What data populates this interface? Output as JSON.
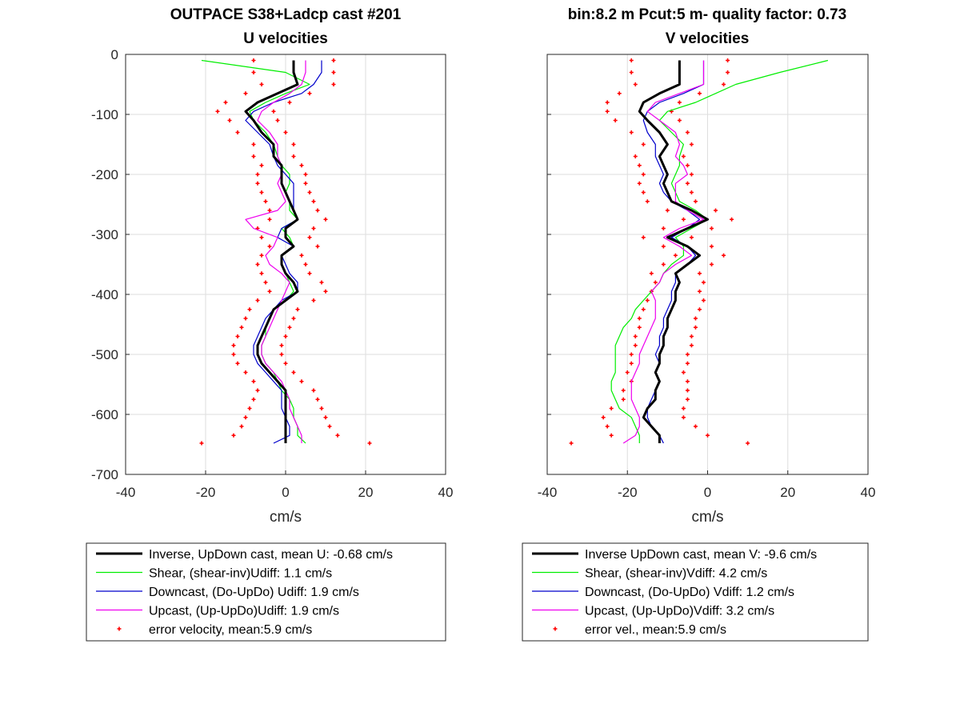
{
  "figure": {
    "left_title_1": "OUTPACE S38+Ladcp cast #201",
    "left_title_2": "U velocities",
    "right_title_1": "bin:8.2 m  Pcut:5 m- quality factor:  0.73",
    "right_title_2": "V velocities"
  },
  "colors": {
    "inverse": "#000000",
    "shear": "#00ee00",
    "downcast": "#0000cc",
    "upcast": "#ee00ee",
    "error": "#ff0000",
    "grid": "#dedede"
  },
  "chart_data": [
    {
      "type": "line",
      "title": "OUTPACE S38+Ladcp cast #201",
      "subtitle": "U velocities",
      "xlabel": "cm/s",
      "ylabel": "",
      "xlim": [
        -40,
        40
      ],
      "ylim": [
        -700,
        0
      ],
      "xticks": [
        "-40",
        "-20",
        "0",
        "20",
        "40"
      ],
      "yticks": [
        "0",
        "-100",
        "-200",
        "-300",
        "-400",
        "-500",
        "-600",
        "-700"
      ],
      "grid": true,
      "legend_position": "below",
      "depth": [
        -10,
        -30,
        -50,
        -65,
        -80,
        -95,
        -110,
        -130,
        -150,
        -170,
        -185,
        -200,
        -215,
        -230,
        -245,
        -260,
        -275,
        -290,
        -305,
        -320,
        -335,
        -350,
        -365,
        -380,
        -395,
        -410,
        -425,
        -440,
        -455,
        -470,
        -485,
        -500,
        -515,
        -530,
        -545,
        -560,
        -575,
        -590,
        -605,
        -620,
        -635,
        -648
      ],
      "series": [
        {
          "name": "Inverse, UpDown cast, mean U:  -0.68 cm/s",
          "color_key": "inverse",
          "values": [
            2,
            2,
            3,
            -2,
            -7,
            -10,
            -8,
            -6,
            -3,
            -3,
            -1,
            -1,
            -1,
            0,
            1,
            2,
            3,
            0,
            0,
            2,
            -1,
            -1,
            0,
            2,
            3,
            0,
            -3,
            -4,
            -5,
            -6,
            -7,
            -7,
            -6,
            -4,
            -2,
            0,
            0,
            0,
            0,
            0,
            0,
            0
          ]
        },
        {
          "name": "Shear, (shear-inv)Udiff:  1.1 cm/s",
          "color_key": "shear",
          "values": [
            -21,
            0,
            6,
            0,
            -5,
            -9,
            -8,
            -5,
            -3,
            -2,
            -1,
            1,
            1,
            0,
            1,
            1,
            3,
            -1,
            1,
            2,
            -1,
            -1,
            0,
            1,
            2,
            0,
            -3,
            -4,
            -5,
            -5,
            -6,
            -6,
            -5,
            -3,
            -2,
            -1,
            1,
            2,
            2,
            3,
            3,
            5
          ]
        },
        {
          "name": "Downcast, (Do-UpDo) Udiff:  1.9 cm/s",
          "color_key": "downcast",
          "values": [
            9,
            9,
            7,
            4,
            -3,
            -8,
            -10,
            -7,
            -4,
            -3,
            -2,
            0,
            2,
            2,
            2,
            2,
            3,
            -1,
            -2,
            2,
            -1,
            0,
            1,
            3,
            3,
            -1,
            -3,
            -5,
            -6,
            -7,
            -8,
            -8,
            -7,
            -5,
            -3,
            -1,
            -1,
            -1,
            0,
            1,
            1,
            -3
          ]
        },
        {
          "name": "Upcast, (Up-UpDo)Udiff:  1.9 cm/s",
          "color_key": "upcast",
          "values": [
            5,
            5,
            4,
            1,
            -3,
            -6,
            -7,
            -4,
            -2,
            -2,
            -1,
            -1,
            -2,
            -1,
            0,
            -2,
            -10,
            -8,
            -2,
            -3,
            -5,
            -4,
            -1,
            1,
            0,
            -1,
            -2,
            -3,
            -4,
            -5,
            -6,
            -6,
            -5,
            -3,
            -1,
            0,
            1,
            1,
            2,
            3,
            4,
            4
          ]
        }
      ],
      "error_velocity": {
        "name": "error velocity, mean:5.9 cm/s",
        "mean": 5.9,
        "depth": [
          -10,
          -30,
          -50,
          -65,
          -80,
          -95,
          -110,
          -130,
          -150,
          -170,
          -185,
          -200,
          -215,
          -230,
          -245,
          -260,
          -275,
          -290,
          -305,
          -320,
          -335,
          -350,
          -365,
          -380,
          -395,
          -410,
          -425,
          -440,
          -455,
          -470,
          -485,
          -500,
          -515,
          -530,
          -545,
          -560,
          -575,
          -590,
          -605,
          -620,
          -635,
          -648
        ],
        "half_width": [
          10,
          10,
          9,
          8,
          8,
          7,
          6,
          6,
          5,
          5,
          5,
          6,
          6,
          6,
          6,
          6,
          7,
          7,
          6,
          6,
          5,
          6,
          6,
          7,
          7,
          7,
          6,
          6,
          6,
          6,
          6,
          6,
          6,
          6,
          6,
          7,
          8,
          9,
          10,
          11,
          13,
          21
        ]
      }
    },
    {
      "type": "line",
      "title": "bin:8.2 m  Pcut:5 m- quality factor:  0.73",
      "subtitle": "V velocities",
      "xlabel": "cm/s",
      "ylabel": "",
      "xlim": [
        -40,
        40
      ],
      "ylim": [
        -700,
        0
      ],
      "xticks": [
        "-40",
        "-20",
        "0",
        "20",
        "40"
      ],
      "yticks": [
        "0",
        "-100",
        "-200",
        "-300",
        "-400",
        "-500",
        "-600",
        "-700"
      ],
      "grid": true,
      "legend_position": "below",
      "depth": [
        -10,
        -30,
        -50,
        -65,
        -80,
        -95,
        -110,
        -130,
        -150,
        -170,
        -185,
        -200,
        -215,
        -230,
        -245,
        -260,
        -275,
        -290,
        -305,
        -320,
        -335,
        -350,
        -365,
        -380,
        -395,
        -410,
        -425,
        -440,
        -455,
        -470,
        -485,
        -500,
        -515,
        -530,
        -545,
        -560,
        -575,
        -590,
        -605,
        -620,
        -635,
        -648
      ],
      "series": [
        {
          "name": "Inverse UpDown cast, mean V:  -9.6 cm/s",
          "color_key": "inverse",
          "values": [
            -7,
            -7,
            -7,
            -12,
            -16,
            -17,
            -15,
            -12,
            -10,
            -12,
            -11,
            -10,
            -11,
            -10,
            -9,
            -4,
            0,
            -5,
            -10,
            -5,
            -2,
            -5,
            -8,
            -7,
            -8,
            -8,
            -9,
            -10,
            -10,
            -11,
            -11,
            -12,
            -12,
            -13,
            -12,
            -13,
            -13,
            -15,
            -16,
            -14,
            -12,
            -12
          ]
        },
        {
          "name": "Shear, (shear-inv)Vdiff:  4.2 cm/s",
          "color_key": "shear",
          "values": [
            30,
            18,
            7,
            2,
            -3,
            -10,
            -12,
            -9,
            -6,
            -7,
            -7,
            -8,
            -9,
            -8,
            -7,
            -3,
            0,
            -4,
            -8,
            -6,
            -6,
            -9,
            -11,
            -12,
            -14,
            -16,
            -18,
            -19,
            -21,
            -22,
            -23,
            -23,
            -23,
            -23,
            -24,
            -24,
            -23,
            -22,
            -19,
            -18,
            -17,
            -17
          ]
        },
        {
          "name": "Downcast, (Do-UpDo) Vdiff:  1.2 cm/s",
          "color_key": "downcast",
          "values": [
            -1,
            -1,
            -1,
            -6,
            -12,
            -15,
            -16,
            -15,
            -13,
            -13,
            -12,
            -11,
            -12,
            -11,
            -9,
            -5,
            -2,
            -5,
            -9,
            -5,
            -3,
            -5,
            -8,
            -8,
            -9,
            -9,
            -10,
            -11,
            -11,
            -12,
            -12,
            -13,
            -12,
            -13,
            -12,
            -13,
            -14,
            -15,
            -15,
            -14,
            -12,
            -11
          ]
        },
        {
          "name": "Upcast, (Up-UpDo)Vdiff:  3.2 cm/s",
          "color_key": "upcast",
          "values": [
            -1,
            -1,
            -1,
            -7,
            -13,
            -15,
            -12,
            -8,
            -7,
            -8,
            -6,
            -5,
            -8,
            -8,
            -8,
            -5,
            -1,
            -7,
            -11,
            -7,
            -4,
            -8,
            -11,
            -12,
            -14,
            -13,
            -13,
            -13,
            -14,
            -15,
            -16,
            -17,
            -17,
            -18,
            -19,
            -19,
            -19,
            -18,
            -17,
            -17,
            -18,
            -21
          ]
        }
      ],
      "error_velocity": {
        "name": "error vel., mean:5.9 cm/s",
        "mean": 5.9,
        "depth": [
          -10,
          -30,
          -50,
          -65,
          -80,
          -95,
          -110,
          -130,
          -150,
          -170,
          -185,
          -200,
          -215,
          -230,
          -245,
          -260,
          -275,
          -290,
          -305,
          -320,
          -335,
          -350,
          -365,
          -380,
          -395,
          -410,
          -425,
          -440,
          -455,
          -470,
          -485,
          -500,
          -515,
          -530,
          -545,
          -560,
          -575,
          -590,
          -605,
          -620,
          -635,
          -648
        ],
        "half_width": [
          12,
          12,
          11,
          10,
          9,
          8,
          8,
          7,
          6,
          6,
          6,
          6,
          6,
          6,
          6,
          6,
          6,
          6,
          6,
          6,
          6,
          6,
          6,
          6,
          6,
          7,
          7,
          7,
          7,
          7,
          7,
          7,
          7,
          7,
          7,
          8,
          8,
          9,
          10,
          11,
          12,
          22
        ]
      }
    }
  ]
}
